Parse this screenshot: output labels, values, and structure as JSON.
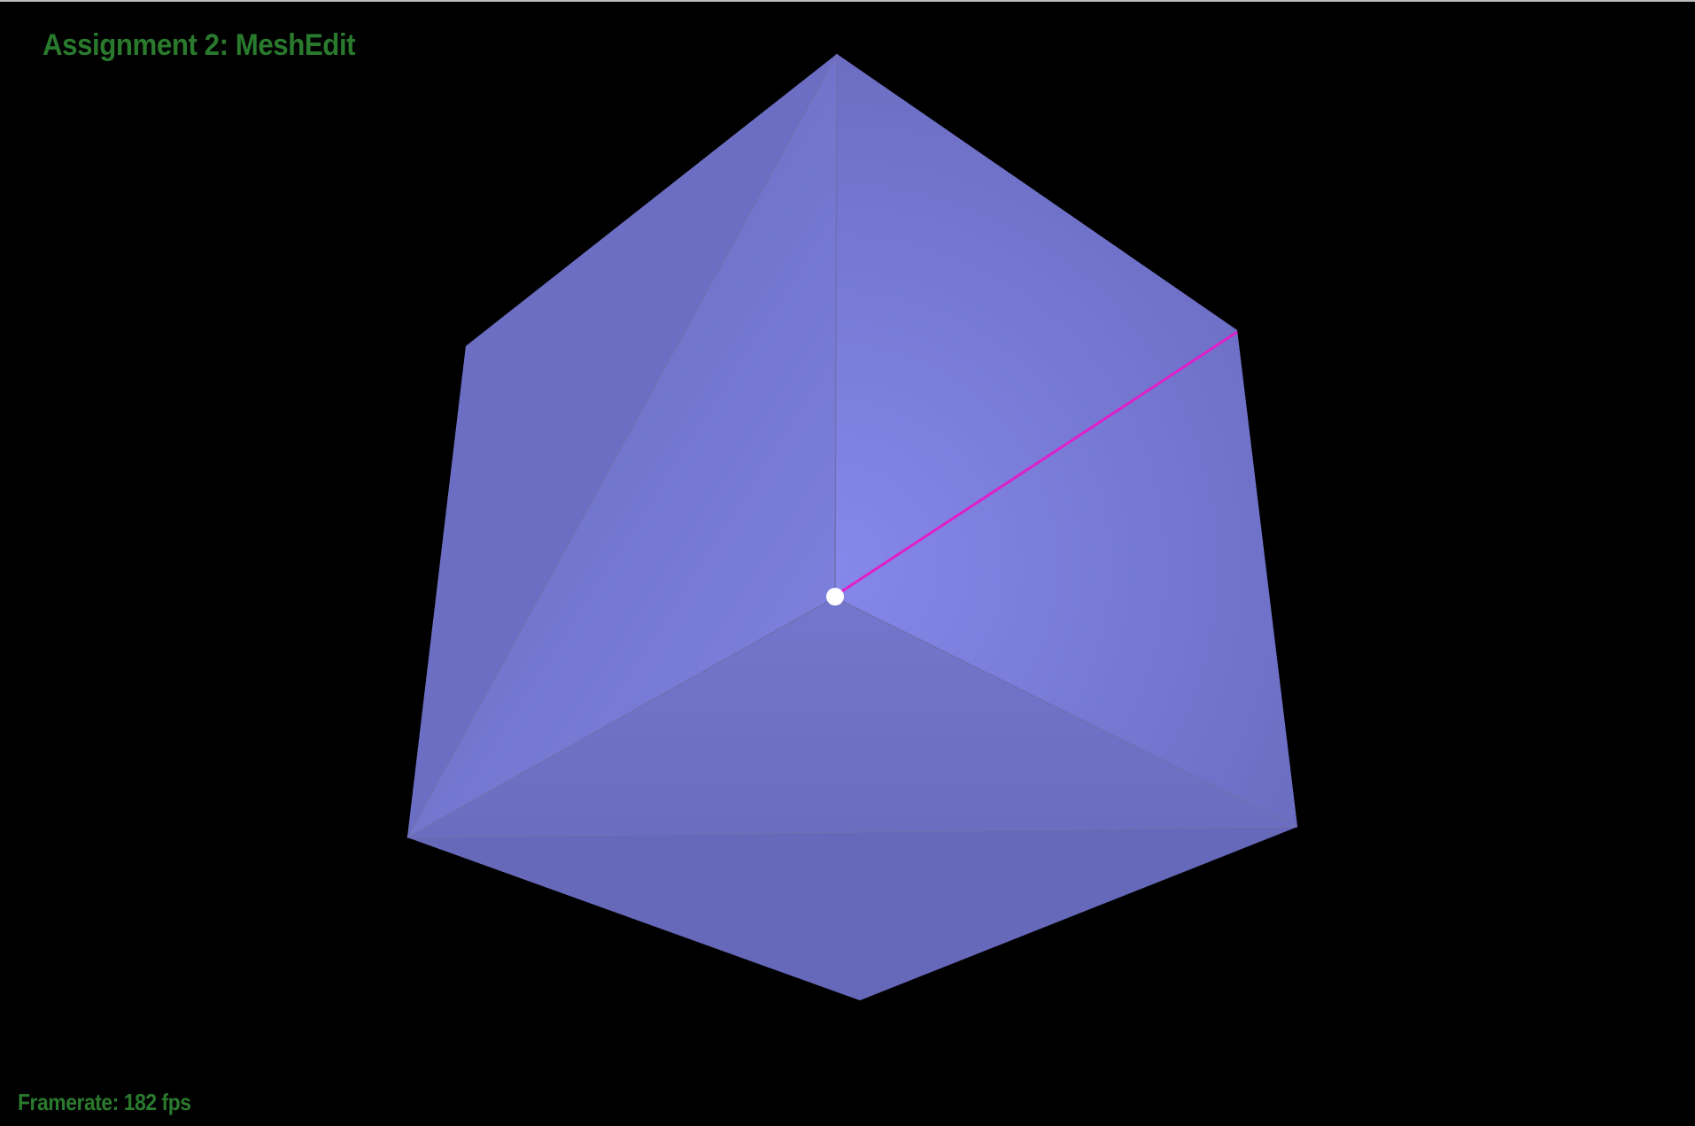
{
  "app": {
    "title": "Assignment 2: MeshEdit",
    "framerate_text": "Framerate: 182 fps"
  },
  "colors": {
    "background": "#000000",
    "hud_text": "#2a7a2e",
    "mesh_light": "#8285e6",
    "mesh_dark": "#6668bb",
    "mesh_edge": "#6f70b4",
    "selected_edge": "#e01fc9",
    "selected_vertex": "#ffffff"
  },
  "mesh": {
    "type": "cube",
    "selection": {
      "edge": "highlighted",
      "vertex": "highlighted"
    }
  }
}
